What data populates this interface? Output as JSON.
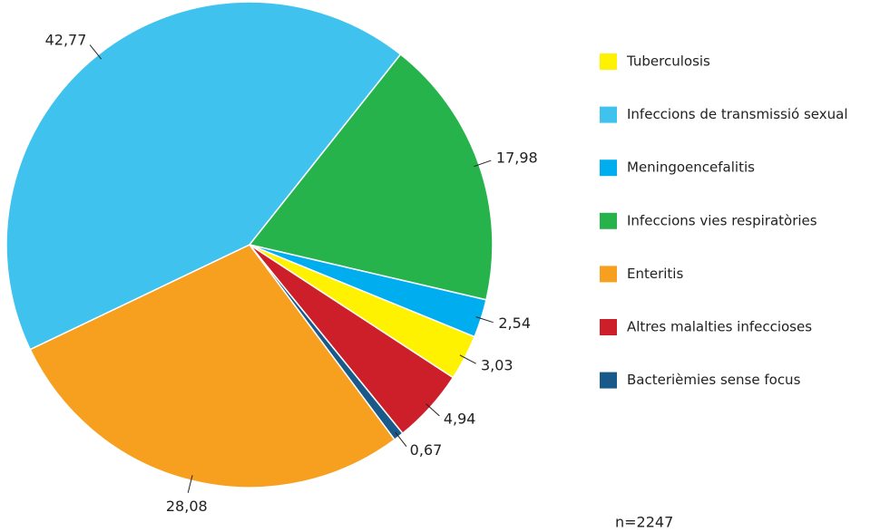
{
  "chart_data": {
    "type": "pie",
    "categories": [
      "Infeccions vies respiratòries",
      "Meningoencefalitis",
      "Tuberculosis",
      "Altres malalties infeccioses",
      "Bacterièmies sense focus",
      "Enteritis",
      "Infeccions de transmissió sexual"
    ],
    "values": [
      17.98,
      2.54,
      3.03,
      4.94,
      0.67,
      28.08,
      42.77
    ],
    "value_labels": [
      "17,98",
      "2,54",
      "3,03",
      "4,94",
      "0,67",
      "28,08",
      "42,77"
    ],
    "colors": [
      "#27b34b",
      "#00aeef",
      "#fff200",
      "#cc1f2a",
      "#1a5a8a",
      "#f7a01f",
      "#3fc3ee"
    ],
    "note": "n=2247"
  }
}
